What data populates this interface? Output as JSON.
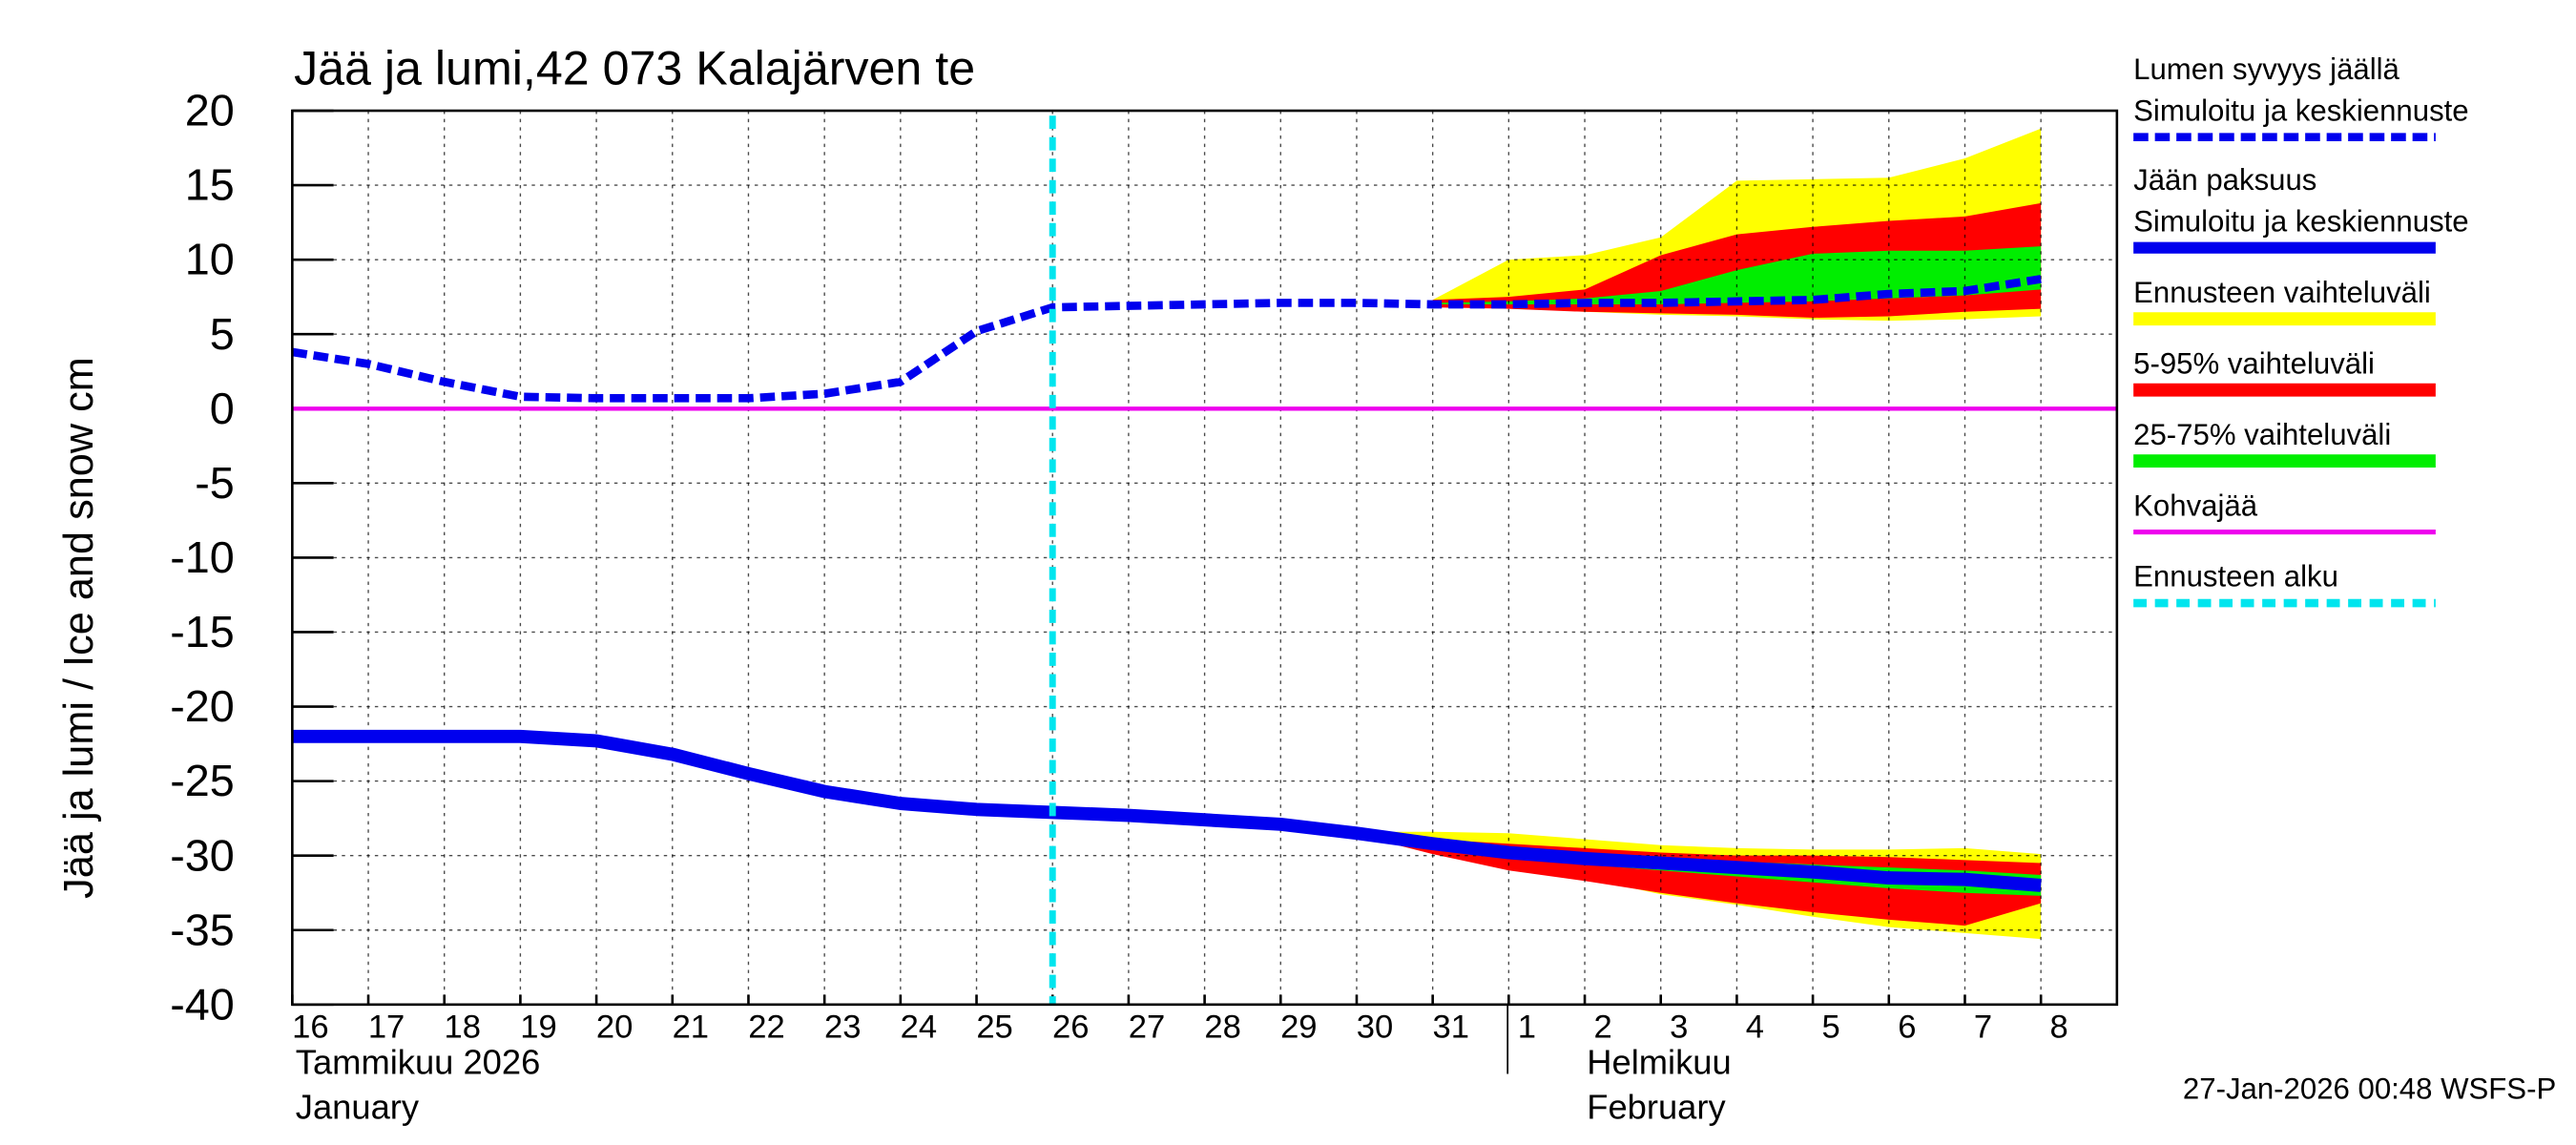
{
  "chart_data": {
    "type": "band-line",
    "title": "Jää ja lumi,42 073 Kalajärven te",
    "y_label": "Jää ja lumi / Ice and snow    cm",
    "timestamp": "27-Jan-2026 00:48 WSFS-P",
    "months": [
      {
        "fi": "Tammikuu  2026",
        "en": "January"
      },
      {
        "fi": "Helmikuu",
        "en": "February"
      }
    ],
    "categories": [
      "16",
      "17",
      "18",
      "19",
      "20",
      "21",
      "22",
      "23",
      "24",
      "25",
      "26",
      "27",
      "28",
      "29",
      "30",
      "31",
      "1",
      "2",
      "3",
      "4",
      "5",
      "6",
      "7",
      "8"
    ],
    "ylim": [
      -40,
      20
    ],
    "yticks": [
      20,
      15,
      10,
      5,
      0,
      -5,
      -10,
      -15,
      -20,
      -25,
      -30,
      -35,
      -40
    ],
    "grid": true,
    "forecast_start": {
      "name": "Ennusteen alku",
      "color": "#00e5ee",
      "index": 10
    },
    "kohvajaa": {
      "name": "Kohvajää",
      "color": "#ee00ee",
      "value": 0
    },
    "bands": [
      {
        "name": "Ennusteen vaihteluväli",
        "color": "#ffff00",
        "snow_low": [
          null,
          null,
          null,
          null,
          null,
          null,
          null,
          null,
          null,
          null,
          null,
          null,
          null,
          null,
          null,
          7.1,
          6.8,
          6.5,
          6.3,
          6.2,
          6.0,
          5.9,
          6.0,
          6.2
        ],
        "snow_high": [
          null,
          null,
          null,
          null,
          null,
          null,
          null,
          null,
          null,
          null,
          null,
          null,
          null,
          null,
          null,
          7.3,
          10,
          10.3,
          11.5,
          15.3,
          15.4,
          15.5,
          16.8,
          18.8
        ],
        "ice_low": [
          null,
          null,
          null,
          null,
          null,
          null,
          null,
          null,
          null,
          null,
          null,
          null,
          null,
          null,
          -28.5,
          -29.6,
          -30.8,
          -31.5,
          -32.6,
          -33.3,
          -34.1,
          -34.8,
          -35.2,
          -35.6
        ],
        "ice_high": [
          null,
          null,
          null,
          null,
          null,
          null,
          null,
          null,
          null,
          null,
          null,
          null,
          null,
          null,
          -28.4,
          -28.4,
          -28.5,
          -28.9,
          -29.3,
          -29.5,
          -29.6,
          -29.6,
          -29.5,
          -29.9
        ]
      },
      {
        "name": "5-95% vaihteluväli",
        "color": "#ff0000",
        "snow_low": [
          null,
          null,
          null,
          null,
          null,
          null,
          null,
          null,
          null,
          null,
          null,
          null,
          null,
          null,
          null,
          6.8,
          6.7,
          6.5,
          6.4,
          6.3,
          6.1,
          6.2,
          6.5,
          6.7
        ],
        "snow_high": [
          null,
          null,
          null,
          null,
          null,
          null,
          null,
          null,
          null,
          null,
          null,
          null,
          null,
          null,
          null,
          7.3,
          7.5,
          8.0,
          10.3,
          11.7,
          12.2,
          12.6,
          12.9,
          13.8
        ],
        "ice_low": [
          null,
          null,
          null,
          null,
          null,
          null,
          null,
          null,
          null,
          null,
          null,
          null,
          null,
          null,
          -28.6,
          -29.9,
          -31.0,
          -31.7,
          -32.5,
          -33.2,
          -33.8,
          -34.3,
          -34.7,
          -33.2
        ],
        "ice_high": [
          null,
          null,
          null,
          null,
          null,
          null,
          null,
          null,
          null,
          null,
          null,
          null,
          null,
          null,
          -28.5,
          -28.9,
          -29.2,
          -29.5,
          -29.8,
          -30.0,
          -30.0,
          -30.1,
          -30.3,
          -30.5
        ]
      },
      {
        "name": "25-75% vaihteluväli",
        "color": "#00ee00",
        "snow_low": [
          null,
          null,
          null,
          null,
          null,
          null,
          null,
          null,
          null,
          null,
          null,
          null,
          null,
          null,
          null,
          7.0,
          7.0,
          7.0,
          7.0,
          7.1,
          7.2,
          7.4,
          7.6,
          8.0
        ],
        "snow_high": [
          null,
          null,
          null,
          null,
          null,
          null,
          null,
          null,
          null,
          null,
          null,
          null,
          null,
          null,
          null,
          7.1,
          7.2,
          7.4,
          7.9,
          9.3,
          10.4,
          10.6,
          10.6,
          10.9
        ],
        "ice_low": [
          null,
          null,
          null,
          null,
          null,
          null,
          null,
          null,
          null,
          null,
          null,
          null,
          null,
          null,
          -28.5,
          -29.5,
          -30.1,
          -30.6,
          -31.0,
          -31.4,
          -31.8,
          -32.2,
          -32.5,
          -32.7
        ],
        "ice_high": [
          null,
          null,
          null,
          null,
          null,
          null,
          null,
          null,
          null,
          null,
          null,
          null,
          null,
          null,
          -28.5,
          -29.1,
          -29.5,
          -29.8,
          -30.1,
          -30.4,
          -30.6,
          -30.8,
          -31.0,
          -31.3
        ]
      }
    ],
    "series": [
      {
        "name": "Lumen syvyys jäällä",
        "subname": "Simuloitu ja keskiennuste",
        "color": "#0000ee",
        "dashed": true,
        "values": [
          3.8,
          3.0,
          1.8,
          0.8,
          0.7,
          0.7,
          0.7,
          1.0,
          1.8,
          5.2,
          6.8,
          6.9,
          7.0,
          7.1,
          7.1,
          7.0,
          7.0,
          7.1,
          7.1,
          7.2,
          7.3,
          7.7,
          7.9,
          8.7
        ]
      },
      {
        "name": "Jään paksuus",
        "subname": "Simuloitu ja keskiennuste",
        "color": "#0000ee",
        "dashed": false,
        "values": [
          -22,
          -22,
          -22,
          -22,
          -22.3,
          -23.2,
          -24.5,
          -25.7,
          -26.5,
          -26.9,
          -27.1,
          -27.3,
          -27.6,
          -27.9,
          -28.5,
          -29.2,
          -29.8,
          -30.2,
          -30.5,
          -30.8,
          -31.1,
          -31.5,
          -31.6,
          -32.0
        ]
      }
    ]
  }
}
